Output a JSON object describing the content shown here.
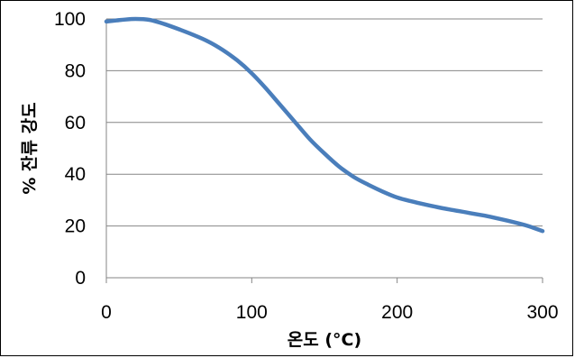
{
  "chart_data": {
    "type": "line",
    "title": "",
    "xlabel": "온도 (°C)",
    "ylabel": "% 잔류 강도",
    "xlim": [
      0,
      300
    ],
    "ylim": [
      0,
      100
    ],
    "x_ticks": [
      0,
      100,
      200,
      300
    ],
    "y_ticks": [
      0,
      20,
      40,
      60,
      80,
      100
    ],
    "grid": "horizontal",
    "legend": "none",
    "series": [
      {
        "color": "#4a7ebb",
        "x": [
          0,
          10,
          20,
          30,
          40,
          50,
          60,
          70,
          80,
          90,
          100,
          110,
          120,
          130,
          140,
          150,
          160,
          170,
          180,
          190,
          200,
          210,
          220,
          230,
          240,
          250,
          260,
          270,
          280,
          290,
          300
        ],
        "values": [
          99,
          99.6,
          100,
          99.6,
          98,
          96,
          93.8,
          91.3,
          88,
          84,
          79,
          73,
          66.5,
          60,
          53.5,
          48,
          43,
          39,
          36,
          33.3,
          31,
          29.5,
          28.2,
          27,
          26,
          25,
          24,
          22.8,
          21.5,
          20,
          18
        ]
      }
    ]
  }
}
